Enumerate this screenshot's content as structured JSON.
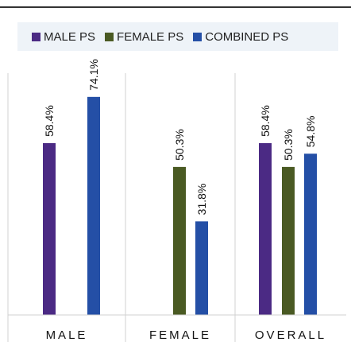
{
  "chart_data": {
    "type": "bar",
    "categories": [
      "MALE",
      "FEMALE",
      "OVERALL"
    ],
    "series": [
      {
        "name": "MALE PS",
        "color": "#4b2a84",
        "values": [
          58.4,
          null,
          58.4
        ],
        "labels": [
          "58.4%",
          "",
          "58.4%"
        ]
      },
      {
        "name": "FEMALE PS",
        "color": "#4a5a23",
        "values": [
          null,
          50.3,
          50.3
        ],
        "labels": [
          "",
          "50.3%",
          "50.3%"
        ]
      },
      {
        "name": "COMBINED PS",
        "color": "#244fa6",
        "values": [
          74.1,
          31.8,
          54.8
        ],
        "labels": [
          "74.1%",
          "31.8%",
          "54.8%"
        ]
      }
    ],
    "ylim": [
      0,
      100
    ],
    "legend_position": "top",
    "grid": false
  }
}
